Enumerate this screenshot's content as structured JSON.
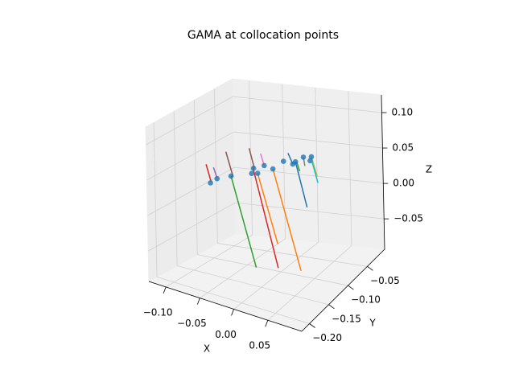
{
  "chart_data": {
    "type": "scatter3d",
    "title": "GAMA at collocation points",
    "xlabel": "X",
    "ylabel": "Y",
    "zlabel": "Z",
    "xlim": [
      -0.125,
      0.1
    ],
    "ylim": [
      -0.22,
      -0.005
    ],
    "zlim": [
      -0.093,
      0.125
    ],
    "xticks": [
      {
        "value": -0.1,
        "label": "−0.10"
      },
      {
        "value": -0.05,
        "label": "−0.05"
      },
      {
        "value": 0,
        "label": "0.00"
      },
      0.05
    ],
    "yticks": [
      {
        "value": -0.2,
        "label": "−0.20"
      },
      {
        "value": -0.15,
        "label": "−0.15"
      },
      {
        "value": -0.1,
        "label": "−0.10"
      },
      {
        "value": -0.05,
        "label": "−0.05"
      }
    ],
    "zticks": [
      {
        "value": -0.05,
        "label": "−0.05"
      },
      {
        "value": 0,
        "label": "0.00"
      },
      0.05,
      {
        "value": 0.1,
        "label": "0.10"
      }
    ],
    "grid": true,
    "points": {
      "color": "#1f77b4",
      "x": [
        -0.097,
        -0.087,
        -0.066,
        -0.032,
        -0.035,
        -0.026,
        -0.016,
        -0.003,
        0.013,
        0.027,
        0.031,
        0.043,
        0.055,
        0.053
      ],
      "y": [
        -0.11,
        -0.11,
        -0.11,
        -0.11,
        -0.11,
        -0.11,
        -0.11,
        -0.11,
        -0.11,
        -0.11,
        -0.11,
        -0.11,
        -0.11,
        -0.11
      ],
      "z": [
        0.017,
        0.025,
        0.033,
        0.051,
        0.043,
        0.045,
        0.058,
        0.056,
        0.07,
        0.069,
        0.073,
        0.082,
        0.085,
        0.079
      ]
    },
    "series": [
      {
        "color": "#d62728",
        "x": [
          -0.103,
          -0.096
        ],
        "y": [
          -0.11,
          -0.11
        ],
        "z": [
          0.042,
          0.019
        ]
      },
      {
        "color": "#9467bd",
        "x": [
          -0.092,
          -0.087
        ],
        "y": [
          -0.11,
          -0.11
        ],
        "z": [
          0.04,
          0.026
        ]
      },
      {
        "color": "#8c564b",
        "x": [
          -0.073,
          -0.063
        ],
        "y": [
          -0.11,
          -0.11
        ],
        "z": [
          0.066,
          0.033
        ]
      },
      {
        "color": "#2ca02c",
        "x": [
          -0.066,
          -0.031
        ],
        "y": [
          -0.11,
          -0.11
        ],
        "z": [
          0.033,
          -0.089
        ]
      },
      {
        "color": "#8c564b",
        "x": [
          -0.038,
          -0.031
        ],
        "y": [
          -0.11,
          -0.11
        ],
        "z": [
          0.078,
          0.052
        ]
      },
      {
        "color": "#d62728",
        "x": [
          -0.033,
          0.002
        ],
        "y": [
          -0.11,
          -0.11
        ],
        "z": [
          0.052,
          -0.083
        ]
      },
      {
        "color": "#ff7f0e",
        "x": [
          -0.026,
          0.002
        ],
        "y": [
          -0.11,
          -0.11
        ],
        "z": [
          0.045,
          -0.049
        ]
      },
      {
        "color": "#e377c2",
        "x": [
          -0.021,
          -0.016
        ],
        "y": [
          -0.11,
          -0.11
        ],
        "z": [
          0.074,
          0.058
        ]
      },
      {
        "color": "#ff7f0e",
        "x": [
          -0.003,
          0.036
        ],
        "y": [
          -0.11,
          -0.11
        ],
        "z": [
          0.056,
          -0.08
        ]
      },
      {
        "color": "#1f77b4",
        "x": [
          0.02,
          0.027
        ],
        "y": [
          -0.11,
          -0.11
        ],
        "z": [
          0.083,
          0.069
        ]
      },
      {
        "color": "#1f77b4",
        "x": [
          0.031,
          0.047
        ],
        "y": [
          -0.11,
          -0.11
        ],
        "z": [
          0.073,
          0.012
        ]
      },
      {
        "color": "#2ca02c",
        "x": [
          0.033,
          0.037
        ],
        "y": [
          -0.11,
          -0.11
        ],
        "z": [
          0.073,
          0.061
        ]
      },
      {
        "color": "#bcbd22",
        "x": [
          0.055,
          0.063
        ],
        "y": [
          -0.11,
          -0.11
        ],
        "z": [
          0.085,
          0.059
        ]
      },
      {
        "color": "#17becf",
        "x": [
          0.056,
          0.064
        ],
        "y": [
          -0.11,
          -0.11
        ],
        "z": [
          0.078,
          0.05
        ]
      },
      {
        "color": "#7f7f7f",
        "x": [
          0.043,
          0.045
        ],
        "y": [
          -0.11,
          -0.11
        ],
        "z": [
          0.082,
          0.07
        ]
      }
    ]
  }
}
